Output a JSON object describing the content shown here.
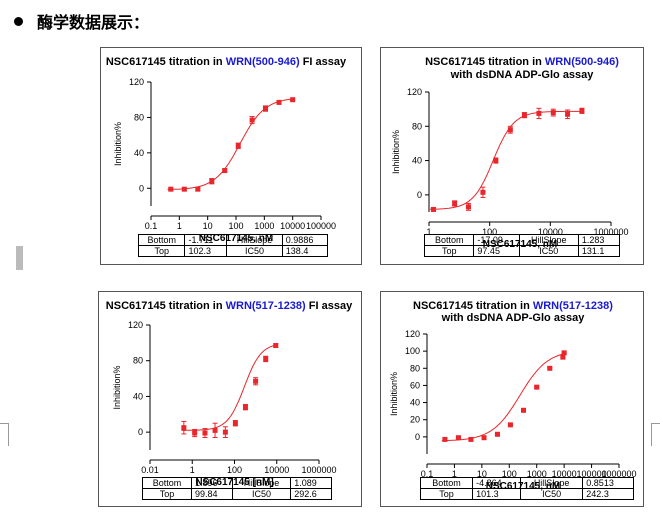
{
  "heading": "酶学数据展示：",
  "colors": {
    "curve": "#e8262b",
    "title_highlight": "#1a1ad0"
  },
  "chart_data": [
    {
      "type": "scatter",
      "title_prefix": "NSC617145 titration in ",
      "title_highlight": "WRN(500-946)",
      "title_suffix": " FI assay",
      "title_line2": "",
      "xlabel": "NSC617145, nM",
      "ylabel": "Inhibition%",
      "xscale": "log",
      "xlim": [
        0.1,
        100000
      ],
      "ylim": [
        -20,
        120
      ],
      "xticks": [
        0.1,
        1,
        10,
        100,
        1000,
        10000,
        100000
      ],
      "xtick_labels": [
        "0.1",
        "1",
        "10",
        "100",
        "1000",
        "10000",
        "100000"
      ],
      "yticks": [
        0,
        40,
        80,
        120
      ],
      "ytick_labels": [
        "0",
        "40",
        "80",
        "120"
      ],
      "points": [
        {
          "x": 0.5,
          "y": -1,
          "err": 1
        },
        {
          "x": 1.5,
          "y": -1,
          "err": 1
        },
        {
          "x": 4.5,
          "y": -1,
          "err": 1
        },
        {
          "x": 14,
          "y": 8,
          "err": 3
        },
        {
          "x": 40,
          "y": 20,
          "err": 2
        },
        {
          "x": 120,
          "y": 48,
          "err": 3
        },
        {
          "x": 370,
          "y": 77,
          "err": 4
        },
        {
          "x": 1100,
          "y": 90,
          "err": 3
        },
        {
          "x": 3300,
          "y": 97,
          "err": 2
        },
        {
          "x": 10000,
          "y": 100,
          "err": 1
        }
      ],
      "fit": {
        "bottom": -1.711,
        "top": 102.3,
        "ic50": 138.4,
        "hill": 0.9886
      },
      "params_table": [
        [
          "Bottom",
          "-1.711",
          "HillSlope",
          "0.9886"
        ],
        [
          "Top",
          "102.3",
          "IC50",
          "138.4"
        ]
      ]
    },
    {
      "type": "scatter",
      "title_prefix": "NSC617145 titration in ",
      "title_highlight": "WRN(500-946)",
      "title_suffix": "",
      "title_line2": "with dsDNA ADP-Glo assay",
      "xlabel": "NSC617145, nM",
      "ylabel": "Inhibition%",
      "xscale": "log",
      "xlim": [
        1,
        1000000
      ],
      "ylim": [
        -20,
        120
      ],
      "xticks": [
        1,
        100,
        10000,
        1000000
      ],
      "xtick_labels": [
        "1",
        "100",
        "10000",
        "1000000"
      ],
      "yticks": [
        0,
        40,
        80,
        120
      ],
      "ytick_labels": [
        "0",
        "40",
        "80",
        "120"
      ],
      "points": [
        {
          "x": 1.4,
          "y": -17,
          "err": 2
        },
        {
          "x": 7,
          "y": -10,
          "err": 3
        },
        {
          "x": 20,
          "y": -14,
          "err": 4
        },
        {
          "x": 60,
          "y": 3,
          "err": 6
        },
        {
          "x": 160,
          "y": 40,
          "err": 3
        },
        {
          "x": 480,
          "y": 76,
          "err": 4
        },
        {
          "x": 1400,
          "y": 93,
          "err": 3
        },
        {
          "x": 4200,
          "y": 95,
          "err": 6
        },
        {
          "x": 12500,
          "y": 96,
          "err": 4
        },
        {
          "x": 37000,
          "y": 94,
          "err": 5
        },
        {
          "x": 110000,
          "y": 98,
          "err": 3
        }
      ],
      "fit": {
        "bottom": -17.09,
        "top": 97.45,
        "ic50": 131.1,
        "hill": 1.283
      },
      "params_table": [
        [
          "Bottom",
          "-17.09",
          "HillSlope",
          "1.283"
        ],
        [
          "Top",
          "97.45",
          "IC50",
          "131.1"
        ]
      ]
    },
    {
      "type": "scatter",
      "title_prefix": "NSC617145 titration in ",
      "title_highlight": "WRN(517-1238)",
      "title_suffix": " FI assay",
      "title_line2": "",
      "xlabel": "NSC617145 [nM]",
      "ylabel": "Inhibition%",
      "xscale": "log",
      "xlim": [
        0.01,
        1000000
      ],
      "ylim": [
        -20,
        120
      ],
      "xticks": [
        0.01,
        1,
        100,
        10000,
        1000000
      ],
      "xtick_labels": [
        "0.01",
        "1",
        "100",
        "10000",
        "1000000"
      ],
      "yticks": [
        0,
        40,
        80,
        120
      ],
      "ytick_labels": [
        "0",
        "40",
        "80",
        "120"
      ],
      "points": [
        {
          "x": 0.4,
          "y": 5,
          "err": 7
        },
        {
          "x": 1.3,
          "y": -1,
          "err": 4
        },
        {
          "x": 4,
          "y": -1,
          "err": 5
        },
        {
          "x": 12,
          "y": 2,
          "err": 8
        },
        {
          "x": 37,
          "y": 0,
          "err": 6
        },
        {
          "x": 110,
          "y": 10,
          "err": 3
        },
        {
          "x": 330,
          "y": 28,
          "err": 3
        },
        {
          "x": 1000,
          "y": 57,
          "err": 4
        },
        {
          "x": 3000,
          "y": 82,
          "err": 3
        },
        {
          "x": 9000,
          "y": 97,
          "err": 2
        }
      ],
      "fit": {
        "bottom": 1.896,
        "top": 99.84,
        "ic50": 292.6,
        "hill": 1.089
      },
      "params_table": [
        [
          "Bottom",
          "1.896",
          "HillSlope",
          "1.089"
        ],
        [
          "Top",
          "99.84",
          "IC50",
          "292.6"
        ]
      ]
    },
    {
      "type": "scatter",
      "title_prefix": "NSC617145 titration in ",
      "title_highlight": "WRN(517-1238)",
      "title_suffix": "",
      "title_line2": "with dsDNA ADP-Glo assay",
      "xlabel": "NSC617145, nM",
      "ylabel": "Inhibition%",
      "xscale": "log",
      "xlim": [
        0.1,
        1000000
      ],
      "ylim": [
        -20,
        120
      ],
      "xticks": [
        0.1,
        1,
        10,
        100,
        1000,
        10000,
        100000,
        1000000
      ],
      "xtick_labels": [
        "0.1",
        "1",
        "10",
        "100",
        "1000",
        "10000",
        "100000",
        "1000000"
      ],
      "yticks": [
        0,
        20,
        40,
        60,
        80,
        100,
        120
      ],
      "ytick_labels": [
        "0",
        "20",
        "40",
        "60",
        "80",
        "100",
        "120"
      ],
      "points": [
        {
          "x": 0.45,
          "y": -3,
          "err": 1
        },
        {
          "x": 1.4,
          "y": -1,
          "err": 1
        },
        {
          "x": 4,
          "y": -3,
          "err": 1
        },
        {
          "x": 12,
          "y": -1,
          "err": 1
        },
        {
          "x": 37,
          "y": 3,
          "err": 1
        },
        {
          "x": 110,
          "y": 14,
          "err": 1
        },
        {
          "x": 330,
          "y": 31,
          "err": 1
        },
        {
          "x": 1000,
          "y": 58,
          "err": 1
        },
        {
          "x": 3000,
          "y": 80,
          "err": 1
        },
        {
          "x": 9000,
          "y": 93,
          "err": 1
        },
        {
          "x": 10000,
          "y": 98,
          "err": 1
        }
      ],
      "fit": {
        "bottom": -4.864,
        "top": 101.3,
        "ic50": 242.3,
        "hill": 0.8513
      },
      "params_table": [
        [
          "Bottom",
          "-4.864",
          "HillSlope",
          "0.8513"
        ],
        [
          "Top",
          "101.3",
          "IC50",
          "242.3"
        ]
      ]
    }
  ]
}
